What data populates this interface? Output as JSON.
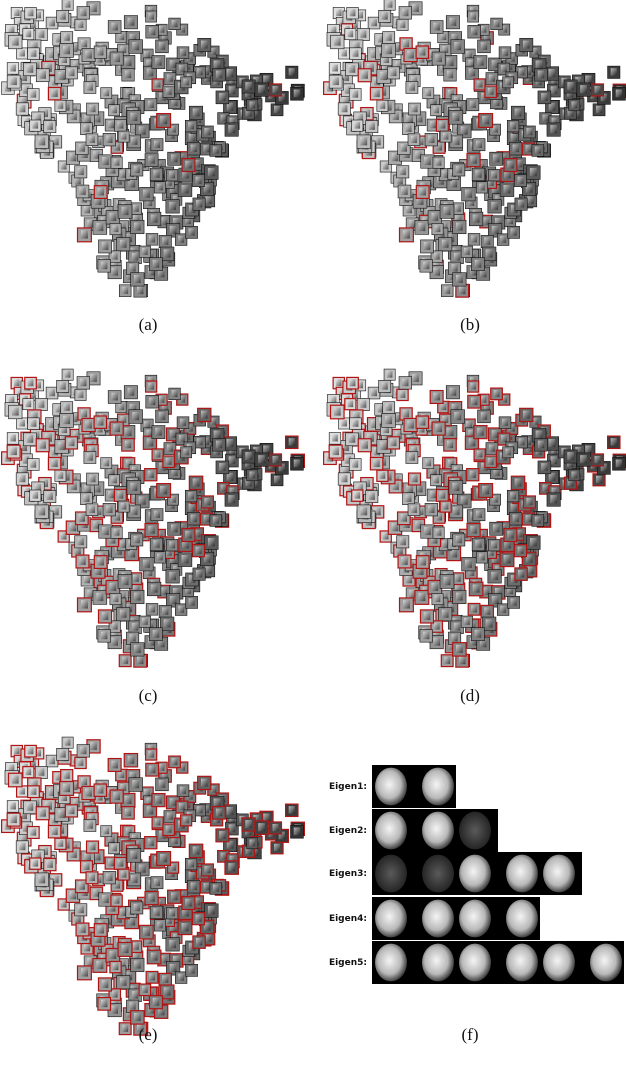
{
  "panels": [
    {
      "caption": "(a)"
    },
    {
      "caption": "(b)"
    },
    {
      "caption": "(c)"
    },
    {
      "caption": "(d)"
    },
    {
      "caption": "(e)"
    },
    {
      "caption": "(f)"
    }
  ],
  "eigen": {
    "rows": [
      {
        "label": "Eigen1:"
      },
      {
        "label": "Eigen2:"
      },
      {
        "label": "Eigen3:"
      },
      {
        "label": "Eigen4:"
      },
      {
        "label": "Eigen5:"
      }
    ]
  }
}
